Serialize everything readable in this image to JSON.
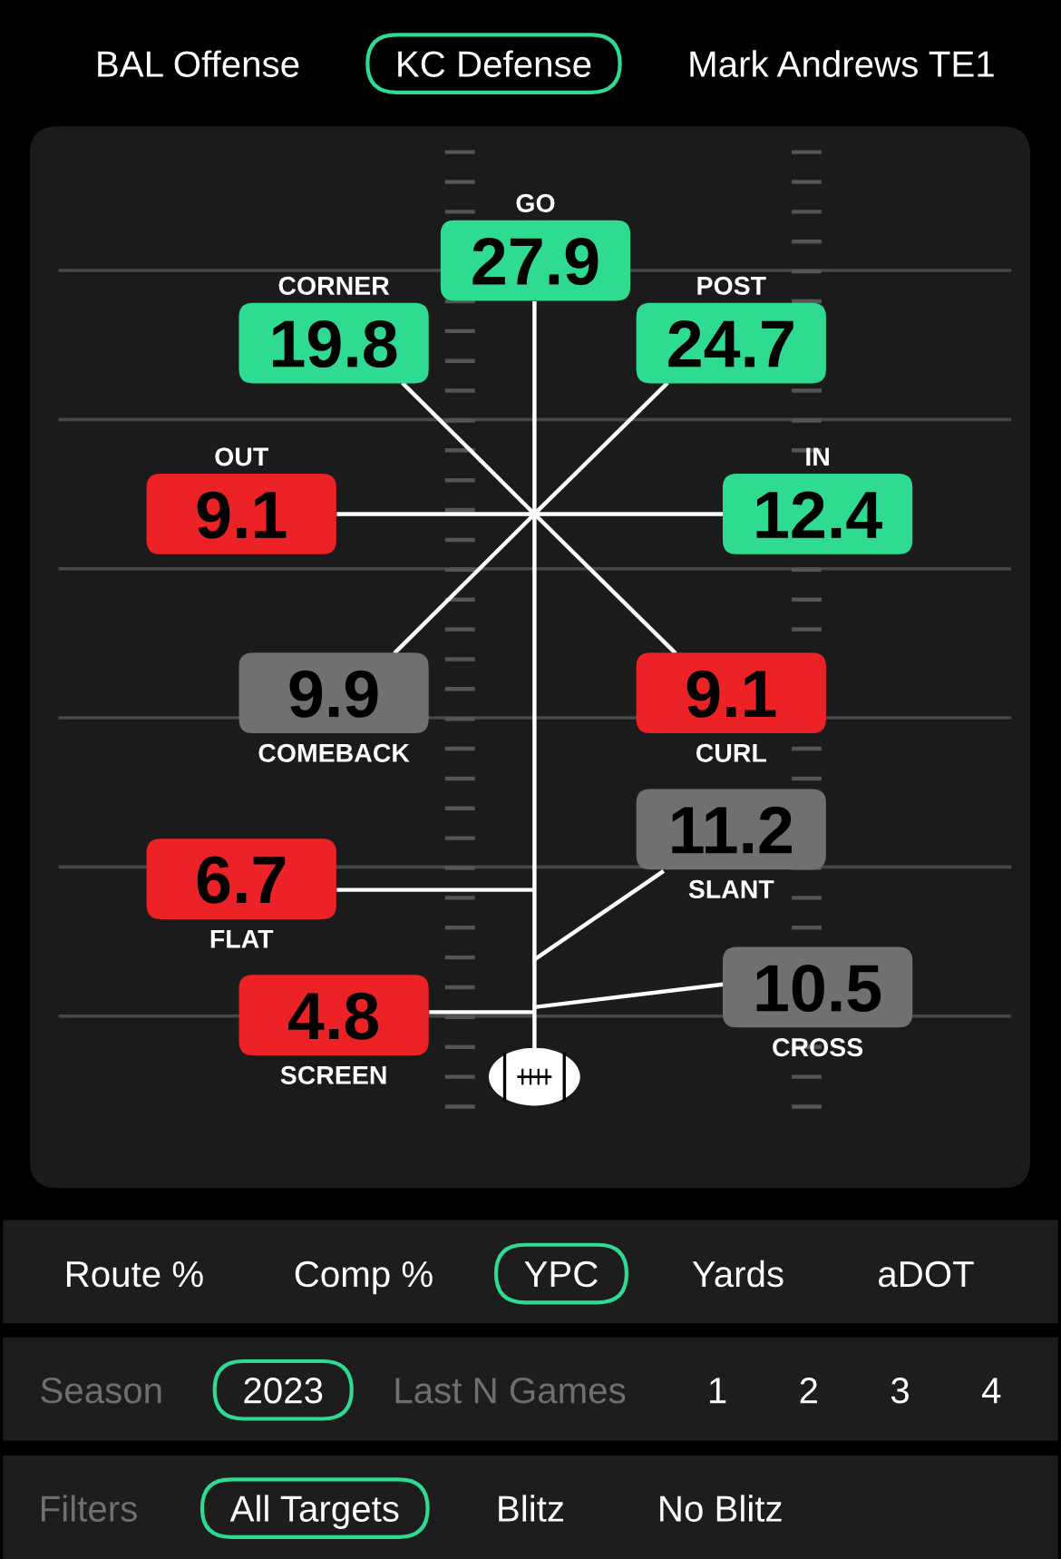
{
  "chart_data": {
    "type": "other",
    "categories": [
      "GO",
      "CORNER",
      "POST",
      "OUT",
      "IN",
      "COMEBACK",
      "CURL",
      "FLAT",
      "SLANT",
      "SCREEN",
      "CROSS"
    ],
    "values": [
      27.9,
      19.8,
      24.7,
      9.1,
      12.4,
      9.9,
      9.1,
      6.7,
      11.2,
      4.8,
      10.5
    ],
    "colors": [
      "#2edb91",
      "#2edb91",
      "#2edb91",
      "#ec2227",
      "#2edb91",
      "#707070",
      "#ec2227",
      "#ec2227",
      "#707070",
      "#ec2227",
      "#707070"
    ],
    "data_labels": true,
    "annotations": [
      "BAL Offense",
      "KC Defense",
      "Mark Andrews TE1",
      "Route %",
      "Comp %",
      "YPC",
      "Yards",
      "aDOT",
      "Season",
      "2023",
      "Last N Games",
      "1       2       3       4",
      "Filters",
      "All Targets",
      "Blitz",
      "No Blitz"
    ]
  }
}
